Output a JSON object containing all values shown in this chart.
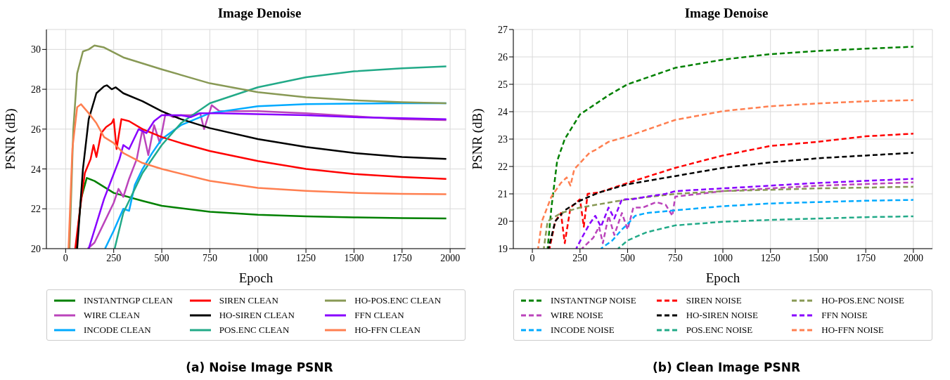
{
  "chart_data": [
    {
      "type": "line",
      "title": "Image Denoise",
      "xlabel": "Epoch",
      "ylabel": "PSNR (dB)",
      "annotations": [
        "(a) Noise Image PSNR"
      ],
      "xlim": [
        -100,
        2080
      ],
      "ylim": [
        20,
        31
      ],
      "xticks": [
        0,
        250,
        500,
        750,
        1000,
        1250,
        1500,
        1750,
        2000
      ],
      "yticks": [
        20,
        22,
        24,
        26,
        28,
        30
      ],
      "grid": true,
      "legend": "bottom",
      "line_style": "solid",
      "series": [
        {
          "name": "INSTANTNGP CLEAN",
          "color": "#008000",
          "x": [
            55,
            80,
            110,
            150,
            250,
            400,
            500,
            750,
            1000,
            1250,
            1500,
            1750,
            1980
          ],
          "values": [
            20,
            22.5,
            23.55,
            23.4,
            22.8,
            22.4,
            22.15,
            21.85,
            21.7,
            21.62,
            21.57,
            21.53,
            21.52
          ]
        },
        {
          "name": "WIRE CLEAN",
          "color": "#bb44bb",
          "x": [
            115,
            150,
            200,
            250,
            275,
            300,
            330,
            370,
            400,
            430,
            460,
            490,
            520,
            560,
            600,
            650,
            700,
            720,
            760,
            800,
            1000,
            1250,
            1500,
            1750,
            1980
          ],
          "values": [
            20,
            20.3,
            21.3,
            22.3,
            23,
            22.6,
            23.5,
            24.5,
            26,
            24.7,
            26.2,
            25.3,
            26.8,
            26.6,
            26.7,
            26.7,
            26.8,
            26,
            27.2,
            26.9,
            26.9,
            26.8,
            26.65,
            26.5,
            26.45
          ]
        },
        {
          "name": "INCODE CLEAN",
          "color": "#00aaff",
          "x": [
            205,
            250,
            300,
            330,
            360,
            400,
            450,
            500,
            600,
            750,
            1000,
            1250,
            1500,
            1750,
            1980
          ],
          "values": [
            20,
            20.9,
            22,
            21.9,
            23.2,
            24,
            24.8,
            25.5,
            26.2,
            26.8,
            27.15,
            27.25,
            27.28,
            27.3,
            27.3
          ]
        },
        {
          "name": "SIREN CLEAN",
          "color": "#ff0000",
          "x": [
            50,
            75,
            100,
            130,
            145,
            160,
            185,
            210,
            240,
            250,
            265,
            290,
            330,
            400,
            500,
            600,
            750,
            1000,
            1250,
            1500,
            1750,
            1980
          ],
          "values": [
            20,
            22,
            23.8,
            24.5,
            25.2,
            24.6,
            25.8,
            26.1,
            26.3,
            26.5,
            25,
            26.5,
            26.4,
            26,
            25.6,
            25.3,
            24.9,
            24.4,
            24,
            23.75,
            23.6,
            23.5
          ]
        },
        {
          "name": "HO-SIREN CLEAN",
          "color": "#000000",
          "x": [
            60,
            90,
            120,
            160,
            200,
            215,
            240,
            260,
            300,
            400,
            500,
            600,
            750,
            1000,
            1250,
            1500,
            1750,
            1980
          ],
          "values": [
            20,
            24,
            26.5,
            27.8,
            28.15,
            28.2,
            28,
            28.1,
            27.8,
            27.4,
            26.9,
            26.5,
            26.05,
            25.5,
            25.1,
            24.8,
            24.6,
            24.5
          ]
        },
        {
          "name": "POS.ENC CLEAN",
          "color": "#22aa88",
          "x": [
            255,
            300,
            400,
            500,
            600,
            750,
            1000,
            1250,
            1500,
            1750,
            1980
          ],
          "values": [
            20,
            21.8,
            23.8,
            25.2,
            26.3,
            27.3,
            28.1,
            28.6,
            28.9,
            29.05,
            29.15
          ]
        },
        {
          "name": "HO-POS.ENC CLEAN",
          "color": "#889955",
          "x": [
            20,
            40,
            60,
            90,
            120,
            150,
            200,
            300,
            400,
            500,
            750,
            1000,
            1250,
            1500,
            1750,
            1980
          ],
          "values": [
            20,
            26,
            28.8,
            29.9,
            30,
            30.2,
            30.1,
            29.6,
            29.3,
            29,
            28.3,
            27.85,
            27.6,
            27.45,
            27.35,
            27.3
          ]
        },
        {
          "name": "FFN CLEAN",
          "color": "#8800ff",
          "x": [
            120,
            200,
            280,
            300,
            330,
            380,
            420,
            460,
            500,
            600,
            650,
            700,
            800,
            1000,
            1250,
            1500,
            1750,
            1980
          ],
          "values": [
            20,
            22.5,
            24.5,
            25.2,
            25,
            26,
            25.8,
            26.4,
            26.7,
            26.7,
            26.6,
            26.8,
            26.8,
            26.75,
            26.7,
            26.6,
            26.55,
            26.5
          ]
        },
        {
          "name": "HO-FFN CLEAN",
          "color": "#ff7f50",
          "x": [
            15,
            35,
            60,
            80,
            120,
            160,
            200,
            250,
            300,
            400,
            500,
            750,
            1000,
            1250,
            1500,
            1750,
            1980
          ],
          "values": [
            20,
            25,
            27.1,
            27.25,
            26.8,
            26.3,
            25.6,
            25.3,
            24.8,
            24.3,
            24,
            23.4,
            23.05,
            22.9,
            22.8,
            22.75,
            22.73
          ]
        }
      ]
    },
    {
      "type": "line",
      "title": "Image Denoise",
      "xlabel": "Epoch",
      "ylabel": "PSNR (dB)",
      "annotations": [
        "(b) Clean Image PSNR"
      ],
      "xlim": [
        -100,
        2100
      ],
      "ylim": [
        19,
        27
      ],
      "xticks": [
        0,
        250,
        500,
        750,
        1000,
        1250,
        1500,
        1750,
        2000
      ],
      "yticks": [
        19,
        20,
        21,
        22,
        23,
        24,
        25,
        26,
        27
      ],
      "grid": true,
      "legend": "bottom",
      "line_style": "dashed",
      "series": [
        {
          "name": "INSTANTNGP NOISE",
          "color": "#008000",
          "x": [
            80,
            100,
            130,
            170,
            250,
            400,
            500,
            750,
            1000,
            1250,
            1500,
            1750,
            2000
          ],
          "values": [
            19,
            20.5,
            22.2,
            23,
            23.9,
            24.6,
            25,
            25.6,
            25.9,
            26.1,
            26.22,
            26.3,
            26.37
          ]
        },
        {
          "name": "WIRE NOISE",
          "color": "#bb44bb",
          "x": [
            260,
            320,
            350,
            370,
            400,
            430,
            470,
            500,
            530,
            580,
            650,
            700,
            735,
            750,
            1000,
            1500,
            2000
          ],
          "values": [
            19,
            19.4,
            19.8,
            19.2,
            20.2,
            19.5,
            20.3,
            19.7,
            20.5,
            20.5,
            20.7,
            20.6,
            20.2,
            20.9,
            21.1,
            21.3,
            21.42
          ]
        },
        {
          "name": "INCODE NOISE",
          "color": "#00aaff",
          "x": [
            360,
            420,
            470,
            500,
            540,
            600,
            750,
            1000,
            1250,
            1500,
            1750,
            2000
          ],
          "values": [
            19,
            19.3,
            19.7,
            19.9,
            20.2,
            20.3,
            20.4,
            20.55,
            20.65,
            20.7,
            20.75,
            20.78
          ]
        },
        {
          "name": "SIREN NOISE",
          "color": "#ff0000",
          "x": [
            90,
            120,
            150,
            170,
            200,
            250,
            270,
            290,
            350,
            500,
            750,
            1000,
            1250,
            1500,
            1750,
            2000
          ],
          "values": [
            19,
            20,
            20.3,
            19.2,
            20.5,
            20.8,
            19.8,
            21,
            21.05,
            21.4,
            21.95,
            22.4,
            22.75,
            22.9,
            23.1,
            23.2
          ]
        },
        {
          "name": "HO-SIREN NOISE",
          "color": "#000000",
          "x": [
            85,
            120,
            170,
            250,
            350,
            500,
            750,
            1000,
            1250,
            1500,
            1750,
            2000
          ],
          "values": [
            19,
            20,
            20.4,
            20.75,
            21.05,
            21.35,
            21.65,
            21.95,
            22.15,
            22.3,
            22.4,
            22.5
          ]
        },
        {
          "name": "POS.ENC NOISE",
          "color": "#22aa88",
          "x": [
            450,
            500,
            600,
            750,
            1000,
            1250,
            1500,
            1750,
            2000
          ],
          "values": [
            19,
            19.3,
            19.6,
            19.85,
            19.98,
            20.05,
            20.1,
            20.15,
            20.18
          ]
        },
        {
          "name": "HO-POS.ENC NOISE",
          "color": "#889955",
          "x": [
            60,
            80,
            150,
            250,
            500,
            750,
            1000,
            1250,
            1500,
            2000
          ],
          "values": [
            19,
            20,
            20.3,
            20.5,
            20.8,
            21,
            21.1,
            21.15,
            21.2,
            21.26
          ]
        },
        {
          "name": "FFN NOISE",
          "color": "#8800ff",
          "x": [
            230,
            260,
            300,
            330,
            360,
            400,
            430,
            470,
            520,
            600,
            700,
            750,
            1000,
            1500,
            2000
          ],
          "values": [
            19,
            19.4,
            19.9,
            20.2,
            19.8,
            20.5,
            20.1,
            20.8,
            20.8,
            20.9,
            21,
            21.1,
            21.2,
            21.4,
            21.55
          ]
        },
        {
          "name": "HO-FFN NOISE",
          "color": "#ff7f50",
          "x": [
            30,
            50,
            100,
            150,
            180,
            200,
            220,
            300,
            330,
            400,
            500,
            750,
            1000,
            1250,
            1500,
            1750,
            2000
          ],
          "values": [
            19,
            20,
            20.9,
            21.4,
            21.6,
            21.3,
            21.9,
            22.5,
            22.6,
            22.9,
            23.1,
            23.7,
            24.02,
            24.2,
            24.3,
            24.38,
            24.42
          ]
        }
      ]
    }
  ]
}
